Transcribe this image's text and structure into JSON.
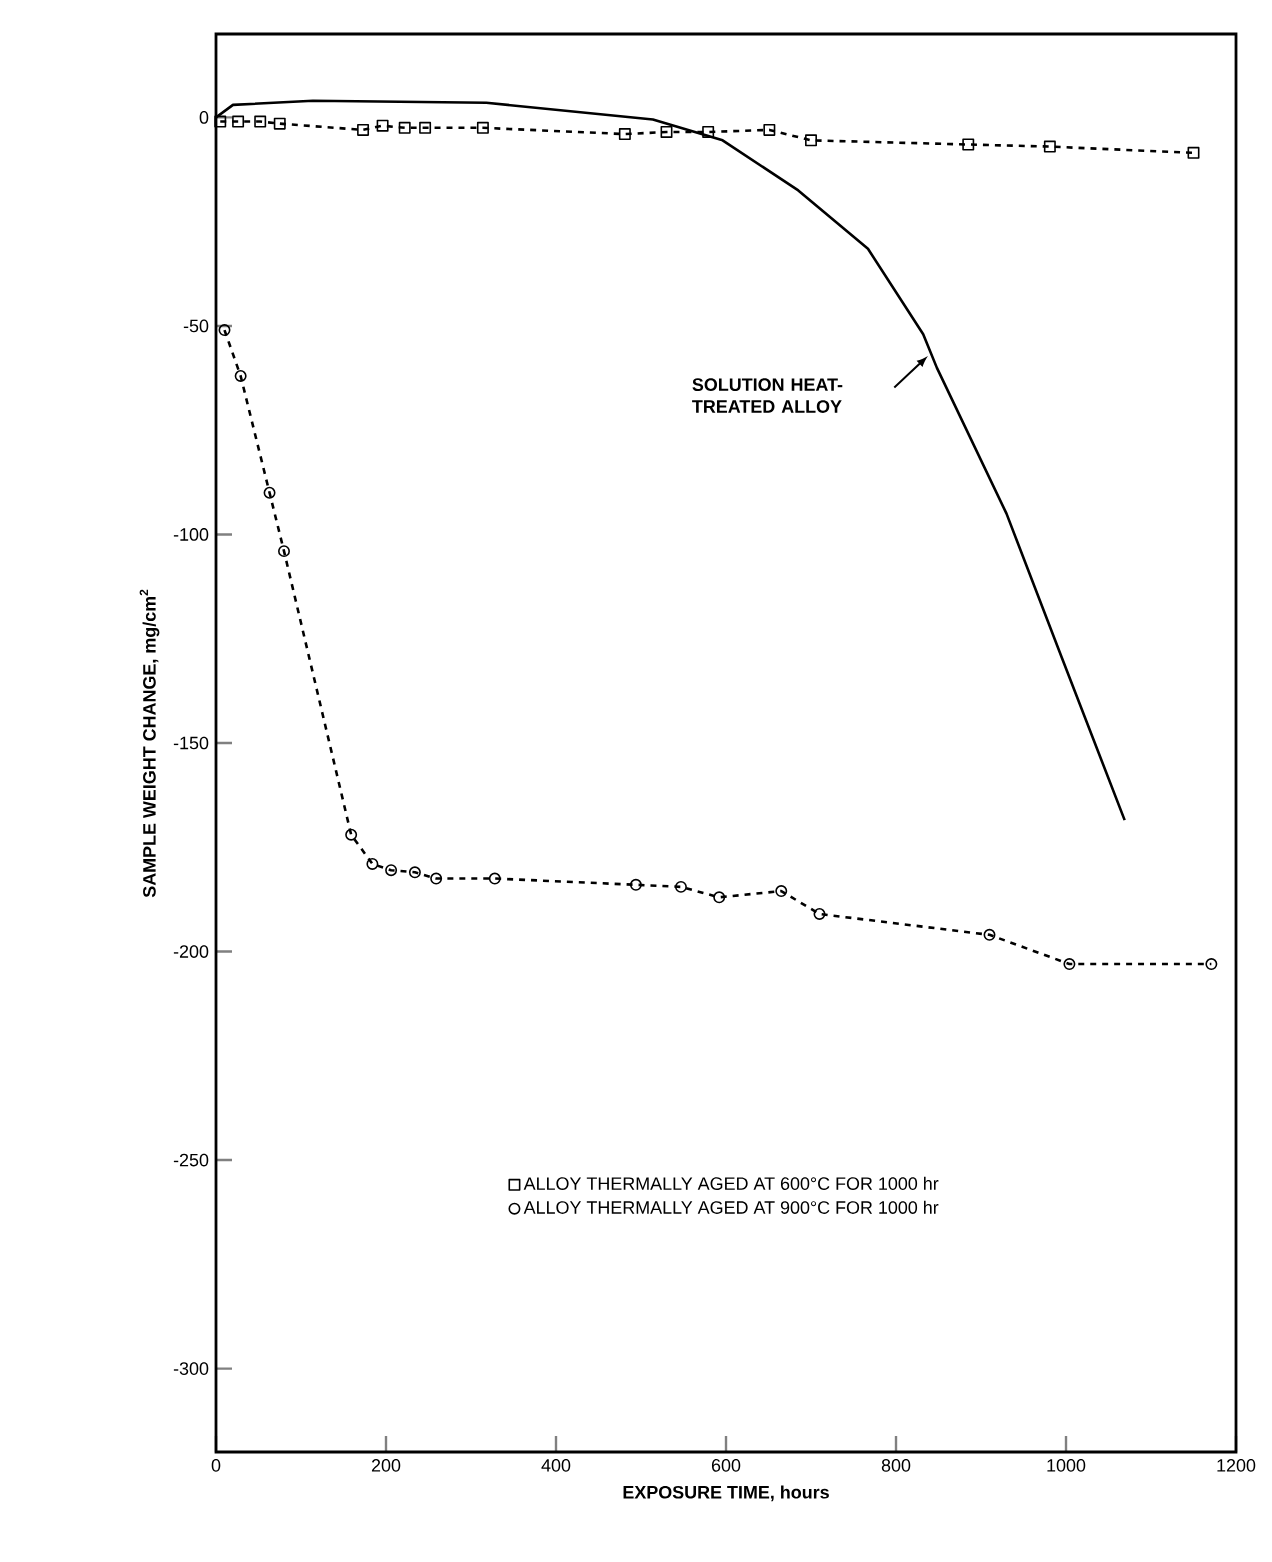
{
  "chart_data": {
    "type": "line",
    "xlabel": "EXPOSURE TIME, hours",
    "ylabel": "SAMPLE WEIGHT CHANGE, mg/cm$^{2}$",
    "xlim": [
      0,
      1200
    ],
    "ylim": [
      -320,
      20
    ],
    "xticks": [
      0,
      200,
      400,
      600,
      800,
      1000,
      1200
    ],
    "yticks": [
      0,
      -50,
      -100,
      -150,
      -200,
      -250,
      -300
    ],
    "grid": false,
    "legend": "bottom",
    "series": [
      {
        "name": "ALLOY THERMALLY AGED AT 600°C FOR 1000 hr",
        "color": "#000000",
        "marker": "square",
        "line_style": "dashed",
        "x": [
          5,
          26,
          52,
          75,
          173,
          196,
          222,
          246,
          314,
          481,
          530,
          579,
          651,
          700,
          885,
          981,
          1150
        ],
        "values": [
          -1,
          -1,
          -1,
          -1.5,
          -3,
          -2,
          -2.5,
          -2.5,
          -2.5,
          -4,
          -3.5,
          -3.5,
          -3,
          -5.5,
          -6.5,
          -7,
          -8.5
        ]
      },
      {
        "name": "ALLOY THERMALLY AGED AT 900°C FOR 1000 hr",
        "color": "#000000",
        "marker": "circle",
        "line_style": "dashed",
        "x": [
          10,
          29,
          63,
          80,
          159,
          184,
          206,
          234,
          259,
          328,
          494,
          547,
          592,
          665,
          710,
          910,
          1004,
          1171
        ],
        "values": [
          -51,
          -62,
          -90,
          -104,
          -172,
          -179,
          -180.5,
          -181,
          -182.5,
          -182.5,
          -184,
          -184.5,
          -187,
          -185.5,
          -191,
          -196,
          -203,
          -203
        ]
      },
      {
        "color": "#000000",
        "marker": "none",
        "line_style": "solid",
        "x": [
          0,
          20,
          114,
          318,
          514,
          596,
          685,
          767,
          832,
          848,
          930,
          995,
          1069
        ],
        "values": [
          0,
          3,
          4,
          3.5,
          -0.5,
          -5.5,
          -17.5,
          -31.5,
          -52,
          -60,
          -95,
          -129.5,
          -168.5
        ]
      }
    ],
    "annotations": [
      "SOLUTION HEAT-TREATED ALLOY"
    ]
  }
}
